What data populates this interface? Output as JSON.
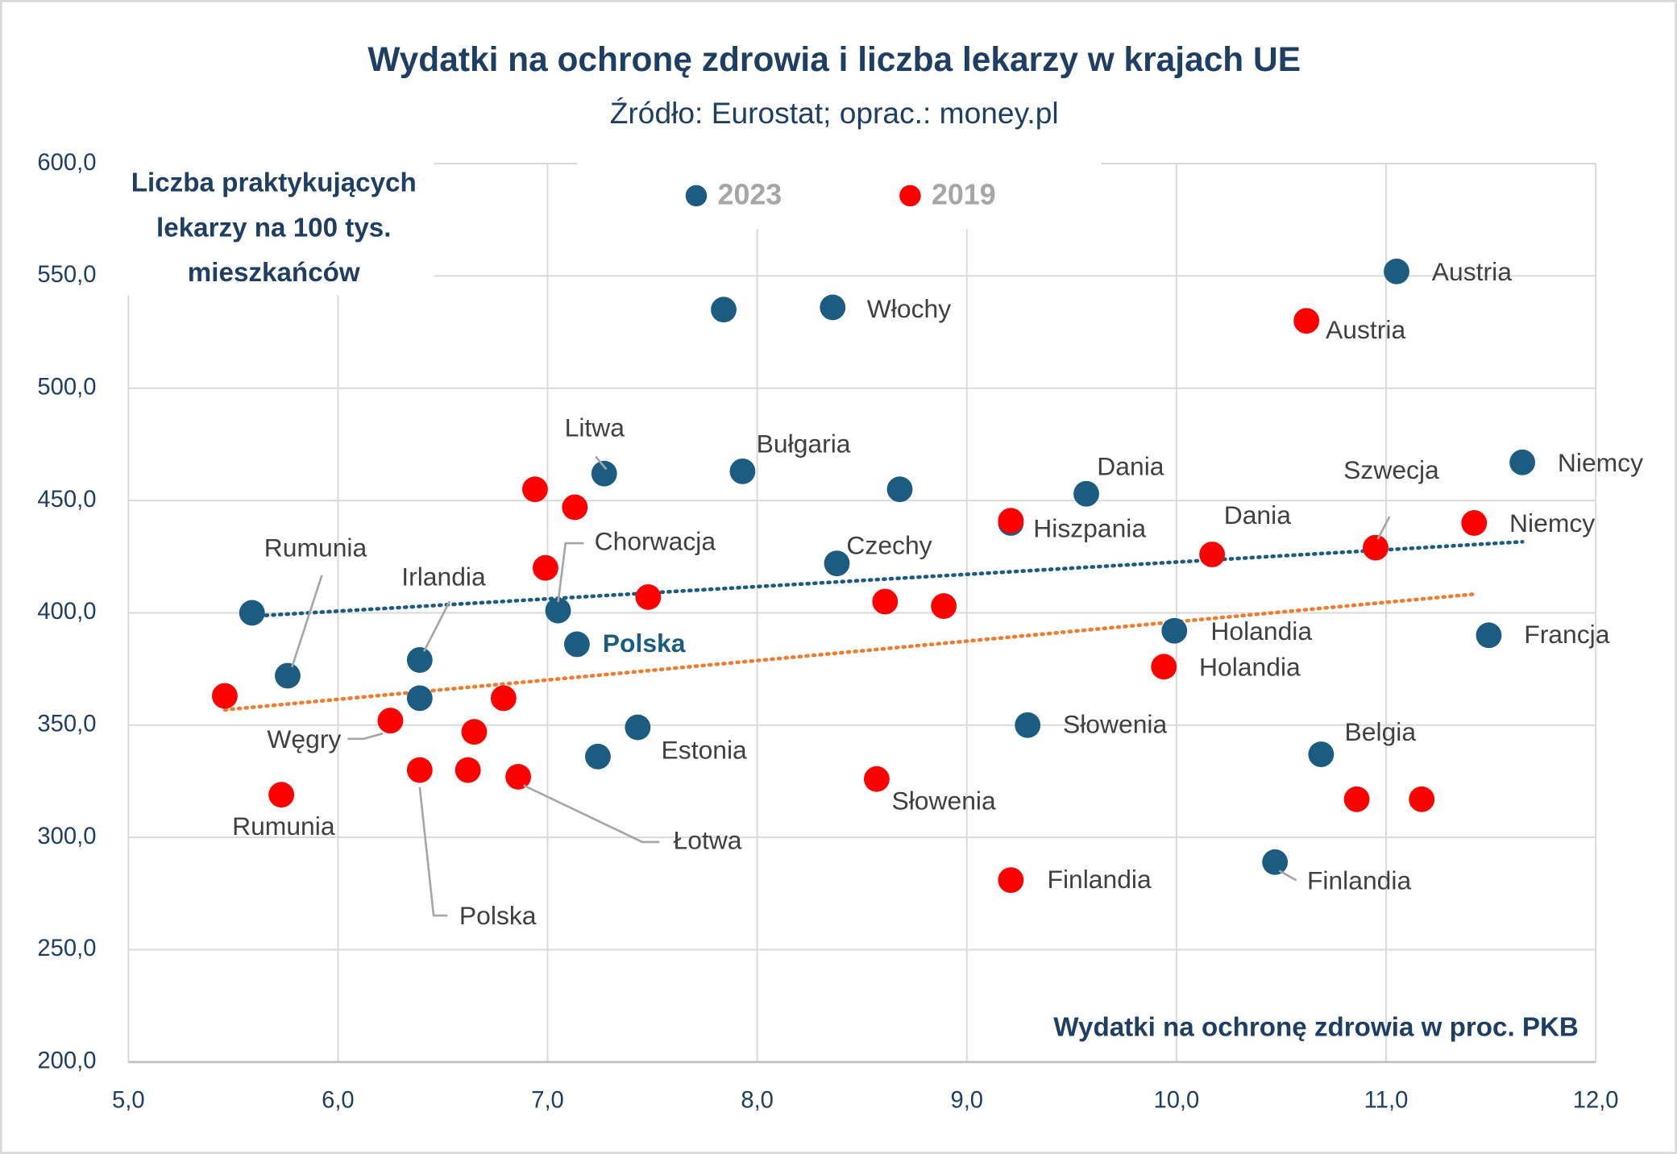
{
  "chart_data": {
    "type": "scatter",
    "title": "Wydatki na ochronę zdrowia i liczba lekarzy w krajach UE",
    "subtitle": "Źródło: Eurostat; oprac.: money.pl",
    "x_label": "Wydatki na ochronę zdrowia w proc. PKB",
    "y_label": "Liczba praktykujących lekarzy na 100 tys. mieszkańców",
    "xlim": [
      5,
      12
    ],
    "xticks": [
      {
        "value": 5,
        "label": "5,0"
      },
      {
        "value": 6,
        "label": "6,0"
      },
      {
        "value": 7,
        "label": "7,0"
      },
      {
        "value": 8,
        "label": "8,0"
      },
      {
        "value": 9,
        "label": "9,0"
      },
      {
        "value": 10,
        "label": "10,0"
      },
      {
        "value": 11,
        "label": "11,0"
      },
      {
        "value": 12,
        "label": "12,0"
      }
    ],
    "ylim": [
      200,
      600
    ],
    "yticks": [
      {
        "value": 200,
        "label": "200,0"
      },
      {
        "value": 250,
        "label": "250,0"
      },
      {
        "value": 300,
        "label": "300,0"
      },
      {
        "value": 350,
        "label": "350,0"
      },
      {
        "value": 400,
        "label": "400,0"
      },
      {
        "value": 450,
        "label": "450,0"
      },
      {
        "value": 500,
        "label": "500,0"
      },
      {
        "value": 550,
        "label": "550,0"
      },
      {
        "value": 600,
        "label": "600,0"
      }
    ],
    "grid": true,
    "legend": "top",
    "series": [
      {
        "name": "2023",
        "color": "#1b5c80",
        "trendline": {
          "type": "linear",
          "color": "#1b5c80"
        },
        "x": [
          5.59,
          5.76,
          6.39,
          6.39,
          7.27,
          7.05,
          7.14,
          7.43,
          7.24,
          7.84,
          8.36,
          7.93,
          8.68,
          8.38,
          9.21,
          9.57,
          9.29,
          9.99,
          10.47,
          10.69,
          11.05,
          11.65,
          11.49
        ],
        "values": [
          400,
          372,
          379,
          362,
          462,
          401,
          386,
          349,
          336,
          535,
          536,
          463,
          455,
          422,
          440,
          453,
          350,
          392,
          289,
          337,
          552,
          467,
          390
        ],
        "labels": [
          null,
          "Rumunia",
          "Irlandia",
          null,
          "Litwa",
          "Chorwacja",
          "Polska",
          "Estonia",
          null,
          null,
          "Włochy",
          "Bułgaria",
          null,
          "Czechy",
          null,
          "Dania",
          "Słowenia",
          "Holandia",
          "Finlandia",
          "Belgia",
          "Austria",
          "Niemcy",
          "Francja"
        ]
      },
      {
        "name": "2019",
        "color": "#ff0000",
        "trendline": {
          "type": "linear",
          "color": "#ed7d31"
        },
        "x": [
          5.46,
          5.73,
          6.94,
          7.13,
          6.99,
          7.48,
          6.25,
          6.39,
          6.65,
          6.79,
          6.62,
          6.86,
          8.61,
          8.89,
          9.21,
          8.57,
          9.21,
          10.17,
          9.94,
          10.62,
          10.95,
          11.42,
          10.86,
          11.17
        ],
        "values": [
          363,
          319,
          455,
          447,
          420,
          407,
          352,
          330,
          347,
          362,
          330,
          327,
          405,
          403,
          441,
          326,
          281,
          426,
          376,
          530,
          429,
          440,
          317,
          317
        ],
        "labels": [
          null,
          "Rumunia",
          null,
          null,
          null,
          null,
          "Węgry",
          "Polska",
          null,
          null,
          null,
          "Łotwa",
          null,
          null,
          "Hiszpania",
          "Słowenia",
          "Finlandia",
          "Dania",
          "Holandia",
          "Austria",
          "Szwecja",
          "Niemcy",
          null,
          null
        ]
      }
    ]
  }
}
